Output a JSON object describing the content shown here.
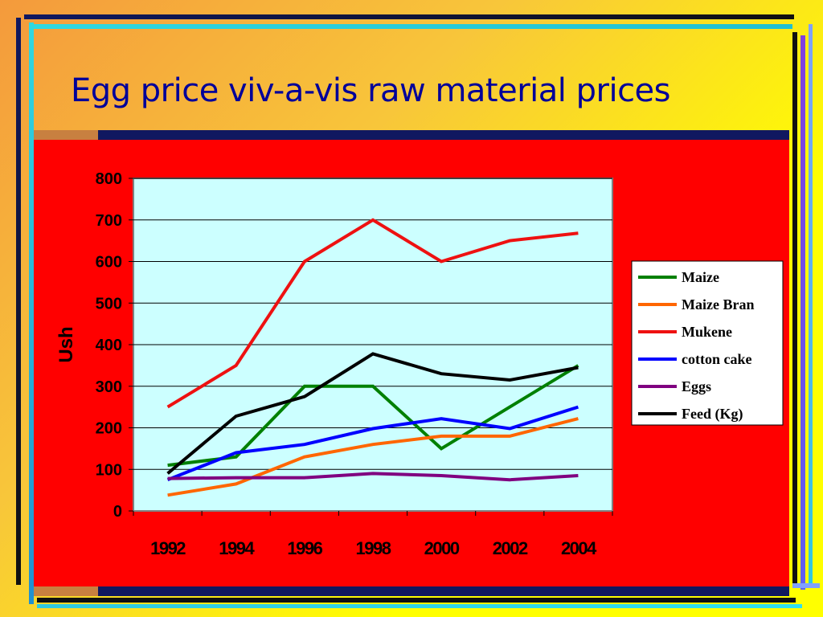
{
  "slide": {
    "title": "Egg price viv-a-vis raw material prices"
  },
  "colors": {
    "panel": "#ff0000",
    "plot_background": "#ccffff",
    "title": "#000099"
  },
  "chart_data": {
    "type": "line",
    "title": "",
    "xlabel": "",
    "ylabel": "Ush",
    "x": [
      "1992",
      "1994",
      "1996",
      "1998",
      "2000",
      "2002",
      "2004"
    ],
    "ylim": [
      0,
      800
    ],
    "yticks": [
      0,
      100,
      200,
      300,
      400,
      500,
      600,
      700,
      800
    ],
    "grid": true,
    "legend_position": "right",
    "series": [
      {
        "name": "Maize",
        "color": "#008000",
        "values": [
          110,
          130,
          300,
          300,
          150,
          250,
          350
        ]
      },
      {
        "name": "Maize Bran",
        "color": "#ff6600",
        "values": [
          38,
          65,
          130,
          160,
          180,
          180,
          222
        ]
      },
      {
        "name": "Mukene",
        "color": "#ee1111",
        "values": [
          250,
          350,
          600,
          700,
          600,
          650,
          668
        ]
      },
      {
        "name": "cotton cake",
        "color": "#0000ff",
        "values": [
          75,
          140,
          160,
          198,
          222,
          198,
          250
        ]
      },
      {
        "name": "Eggs",
        "color": "#800080",
        "values": [
          78,
          80,
          80,
          90,
          85,
          75,
          85
        ]
      },
      {
        "name": "Feed (Kg)",
        "color": "#000000",
        "values": [
          90,
          228,
          275,
          378,
          330,
          315,
          345
        ]
      }
    ]
  }
}
